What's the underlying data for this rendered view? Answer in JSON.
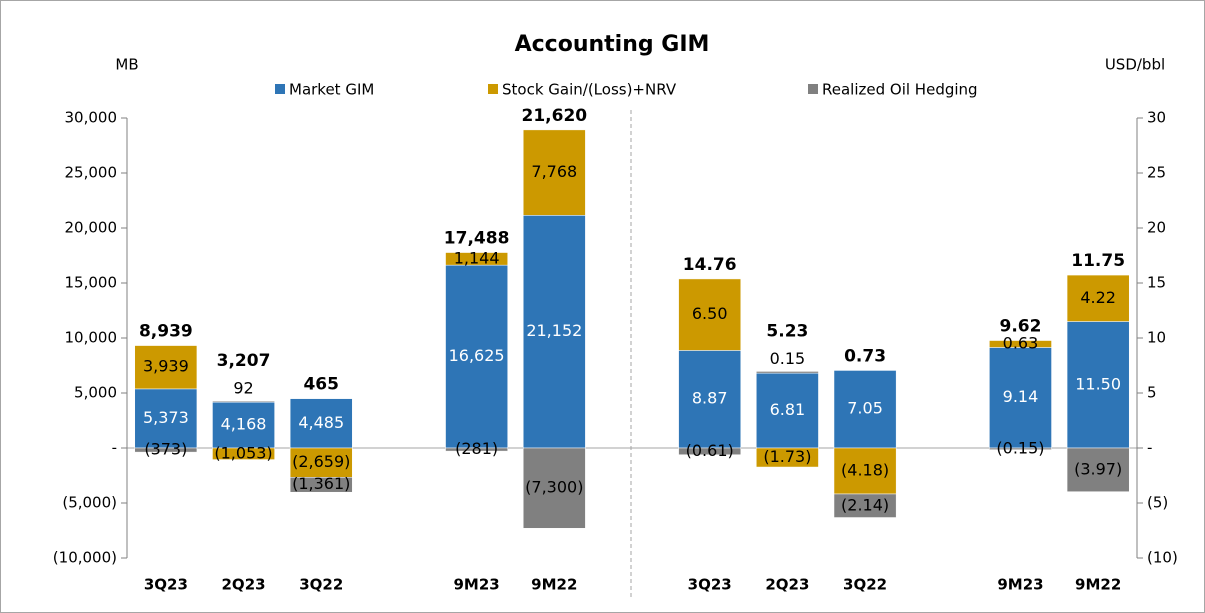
{
  "chart_data": [
    {
      "type": "bar",
      "stacked": true,
      "title": "Accounting GIM",
      "y_label": "MB",
      "categories": [
        "3Q23",
        "2Q23",
        "3Q22",
        null,
        "9M23",
        "9M22"
      ],
      "series": [
        {
          "name": "Market GIM",
          "color": "#2e75b6",
          "values": [
            5373,
            4168,
            4485,
            null,
            16625,
            21152
          ],
          "value_labels": [
            "5,373",
            "4,168",
            "4,485",
            null,
            "16,625",
            "21,152"
          ]
        },
        {
          "name": "Stock Gain/(Loss)+NRV",
          "color": "#cc9900",
          "values": [
            3939,
            -1053,
            -2659,
            null,
            1144,
            7768
          ],
          "value_labels": [
            "3,939",
            "(1,053)",
            "(2,659)",
            null,
            "1,144",
            "7,768"
          ]
        },
        {
          "name": "Realized Oil Hedging",
          "color": "#808080",
          "values": [
            -373,
            92,
            -1361,
            null,
            -281,
            -7300
          ],
          "value_labels": [
            "(373)",
            "92",
            "(1,361)",
            null,
            "(281)",
            "(7,300)"
          ]
        }
      ],
      "totals": [
        8939,
        3207,
        465,
        null,
        17488,
        21620
      ],
      "total_labels": [
        "8,939",
        "3,207",
        "465",
        null,
        "17,488",
        "21,620"
      ],
      "ylim": [
        -10000,
        30000
      ],
      "yticks": [
        {
          "value": -10000,
          "label": "(10,000)"
        },
        {
          "value": -5000,
          "label": "(5,000)"
        },
        {
          "value": 0,
          "label": "-"
        },
        {
          "value": 5000,
          "label": "5,000"
        },
        {
          "value": 10000,
          "label": "10,000"
        },
        {
          "value": 15000,
          "label": "15,000"
        },
        {
          "value": 20000,
          "label": "20,000"
        },
        {
          "value": 25000,
          "label": "25,000"
        },
        {
          "value": 30000,
          "label": "30,000"
        }
      ]
    },
    {
      "type": "bar",
      "stacked": true,
      "axis": "y2",
      "y_label": "USD/bbl",
      "categories": [
        "3Q23",
        "2Q23",
        "3Q22",
        null,
        "9M23",
        "9M22"
      ],
      "series": [
        {
          "color": "#2e75b6",
          "values": [
            8.87,
            6.81,
            7.05,
            null,
            9.14,
            11.5
          ],
          "value_labels": [
            "8.87",
            "6.81",
            "7.05",
            null,
            "9.14",
            "11.50"
          ]
        },
        {
          "color": "#cc9900",
          "values": [
            6.5,
            -1.73,
            -4.18,
            null,
            0.63,
            4.22
          ],
          "value_labels": [
            "6.50",
            "(1.73)",
            "(4.18)",
            null,
            "0.63",
            "4.22"
          ]
        },
        {
          "color": "#808080",
          "values": [
            -0.61,
            0.15,
            -2.14,
            null,
            -0.15,
            -3.97
          ],
          "value_labels": [
            "(0.61)",
            "0.15",
            "(2.14)",
            null,
            "(0.15)",
            "(3.97)"
          ]
        }
      ],
      "totals": [
        14.76,
        5.23,
        0.73,
        null,
        9.62,
        11.75
      ],
      "total_labels": [
        "14.76",
        "5.23",
        "0.73",
        null,
        "9.62",
        "11.75"
      ],
      "y2lim": [
        -10,
        30
      ],
      "y2ticks": [
        {
          "value": -10,
          "label": "(10)"
        },
        {
          "value": -5,
          "label": "(5)"
        },
        {
          "value": 0,
          "label": "-"
        },
        5,
        10,
        15,
        20,
        25,
        30
      ]
    }
  ]
}
